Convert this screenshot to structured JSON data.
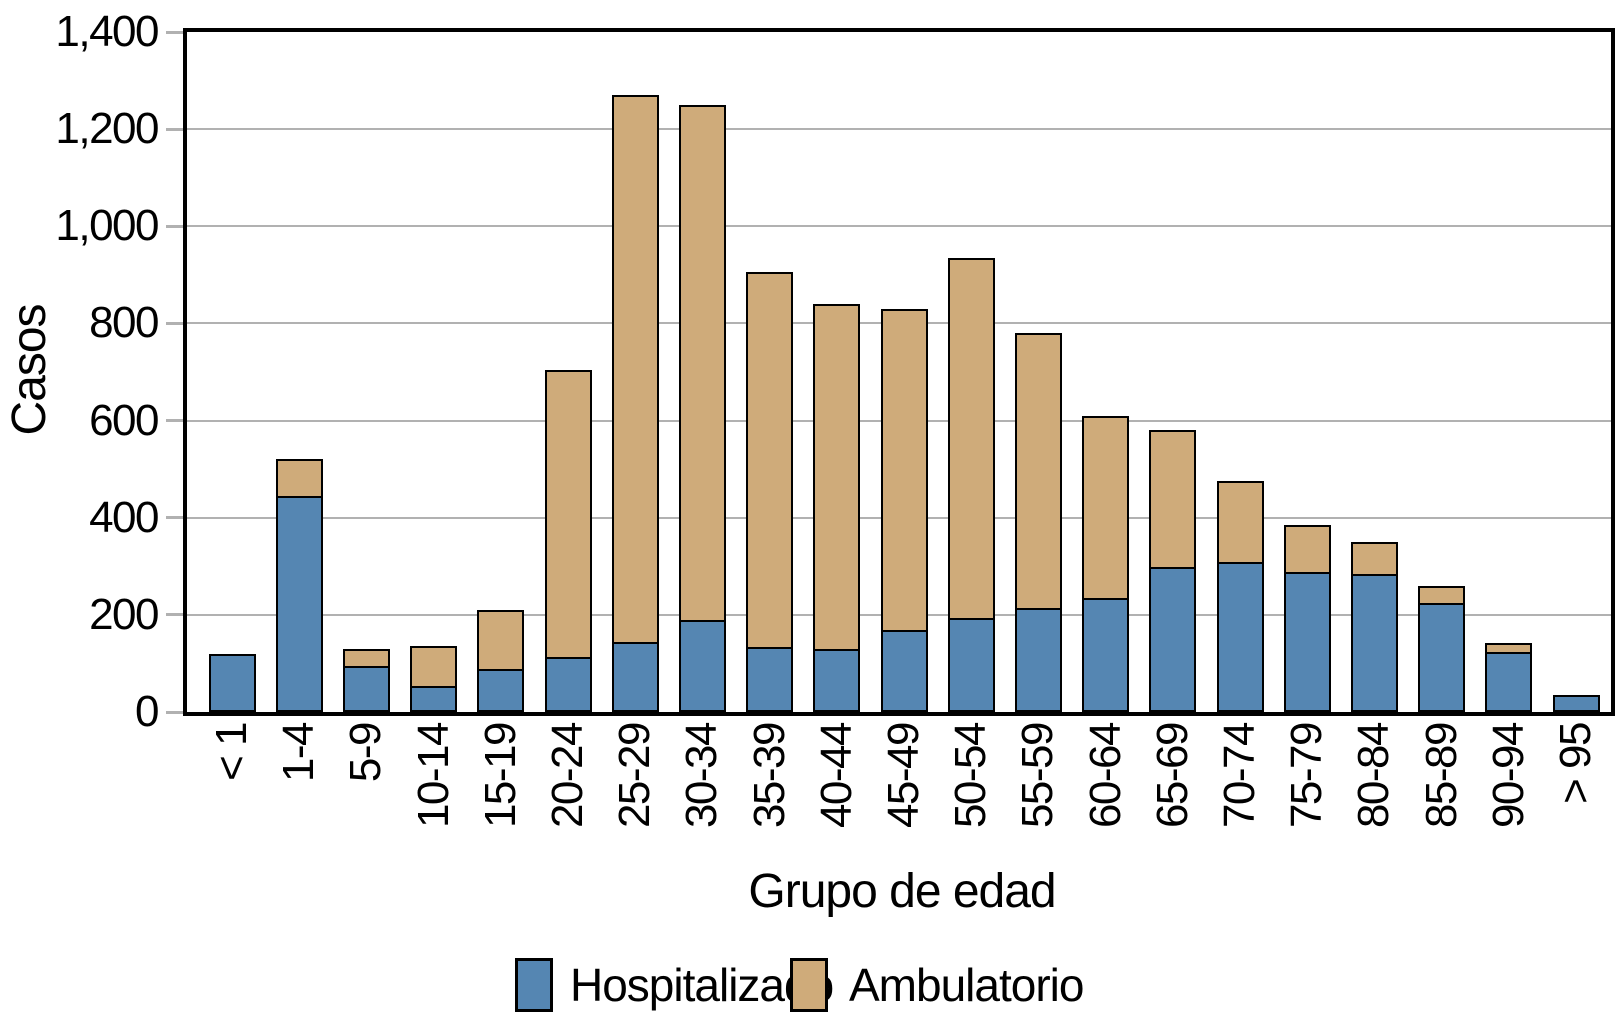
{
  "chart_data": {
    "type": "bar",
    "stacked": true,
    "xlabel": "Grupo de edad",
    "ylabel": "Casos",
    "categories": [
      "< 1",
      "1-4",
      "5-9",
      "10-14",
      "15-19",
      "20-24",
      "25-29",
      "30-34",
      "35-39",
      "40-44",
      "45-49",
      "50-54",
      "55-59",
      "60-64",
      "65-69",
      "70-74",
      "75-79",
      "80-84",
      "85-89",
      "90-94",
      "> 95"
    ],
    "series": [
      {
        "name": "Hospitalizado",
        "color": "#5586b2",
        "values": [
          120,
          440,
          90,
          50,
          85,
          110,
          140,
          185,
          130,
          125,
          165,
          190,
          210,
          230,
          295,
          305,
          285,
          280,
          220,
          120,
          35
        ]
      },
      {
        "name": "Ambulatorio",
        "color": "#cfab7a",
        "values": [
          0,
          80,
          40,
          85,
          125,
          595,
          1130,
          1065,
          775,
          715,
          665,
          745,
          570,
          380,
          285,
          170,
          100,
          70,
          40,
          22,
          0
        ]
      }
    ],
    "totals": [
      120,
      520,
      130,
      135,
      210,
      705,
      1270,
      1250,
      905,
      840,
      830,
      935,
      780,
      610,
      580,
      475,
      385,
      350,
      260,
      142,
      35
    ],
    "ylim": [
      0,
      1400
    ],
    "ytick_step": 200,
    "ytick_labels": [
      "0",
      "200",
      "400",
      "600",
      "800",
      "1,000",
      "1,200",
      "1,400"
    ],
    "grid": true,
    "gridline_color": "#b1b1b1",
    "bar_outline_color": "#000000",
    "legend_position": "bottom"
  },
  "legend": {
    "items": [
      {
        "label": "Hospitalizado",
        "color": "#5586b2"
      },
      {
        "label": "Ambulatorio",
        "color": "#cfab7a"
      }
    ]
  }
}
